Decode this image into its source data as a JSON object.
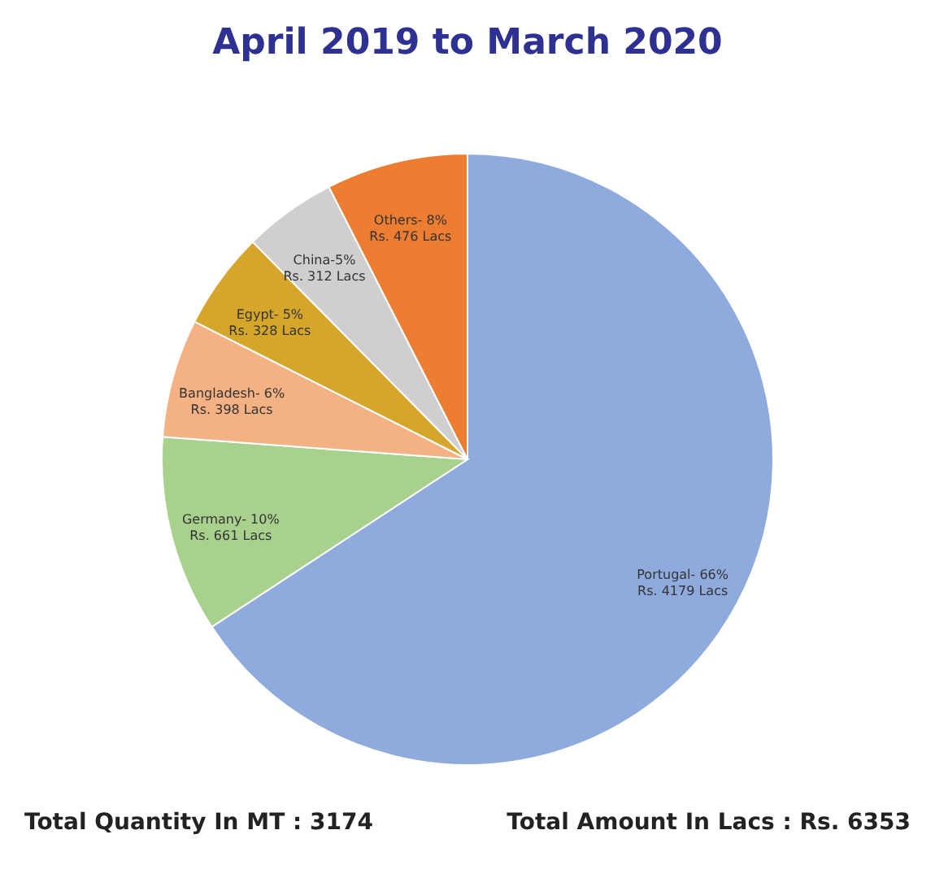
{
  "chart_data": {
    "type": "pie",
    "title": "April 2019 to March 2020",
    "categories": [
      "Portugal- 66%",
      "Germany- 10%",
      "Bangladesh- 6%",
      "Egypt- 5%",
      "China-5%",
      "Others- 8%"
    ],
    "values": [
      4179,
      661,
      398,
      328,
      312,
      476
    ],
    "value_labels": [
      "Rs. 4179 Lacs",
      "Rs. 661 Lacs",
      "Rs. 398 Lacs",
      "Rs. 328 Lacs",
      "Rs. 312 Lacs",
      "Rs. 476 Lacs"
    ],
    "colors": [
      "#8faadc",
      "#a9d18e",
      "#f4b183",
      "#d6a62a",
      "#d0cece",
      "#ed7d31"
    ],
    "legend": false,
    "annotations": [
      "Total Quantity In MT : 3174",
      "Total Amount In Lacs : Rs. 6353"
    ]
  }
}
